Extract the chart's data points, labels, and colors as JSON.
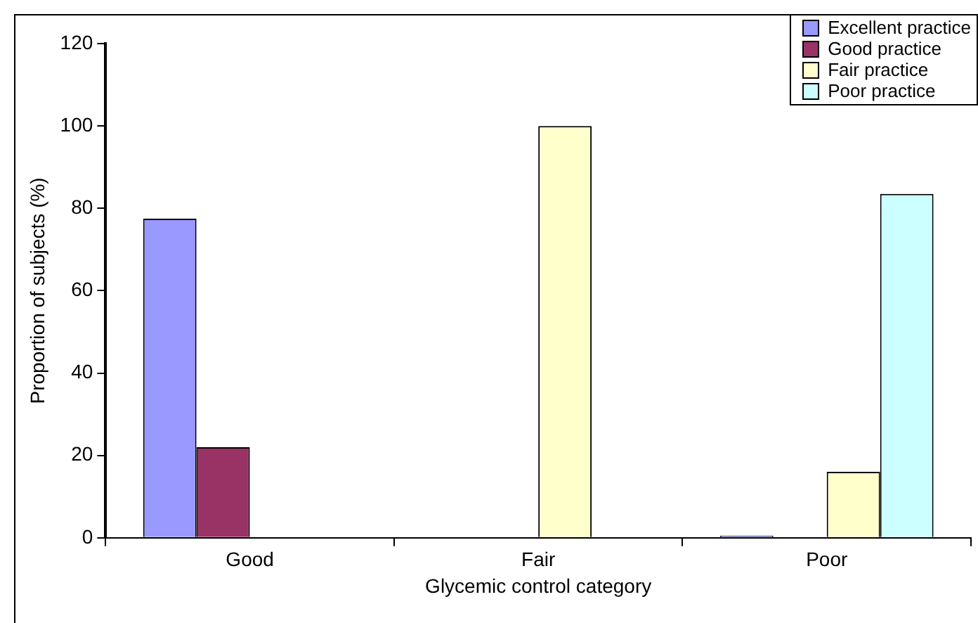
{
  "chart_data": {
    "type": "bar",
    "xlabel": "Glycemic control category",
    "ylabel": "Proportion of subjects (%)",
    "categories": [
      "Good",
      "Fair",
      "Poor"
    ],
    "series": [
      {
        "name": "Excellent practice",
        "color": "#9999ff",
        "values": [
          77.5,
          0,
          0.5
        ]
      },
      {
        "name": "Good practice",
        "color": "#993366",
        "values": [
          22,
          0,
          0
        ]
      },
      {
        "name": "Fair practice",
        "color": "#ffffcc",
        "values": [
          0,
          100,
          16
        ]
      },
      {
        "name": "Poor practice",
        "color": "#ccffff",
        "values": [
          0,
          0,
          83.5
        ]
      }
    ],
    "ylim": [
      0,
      120
    ],
    "yticks": [
      0,
      20,
      40,
      60,
      80,
      100,
      120
    ],
    "grid": false,
    "legend": "top right"
  }
}
